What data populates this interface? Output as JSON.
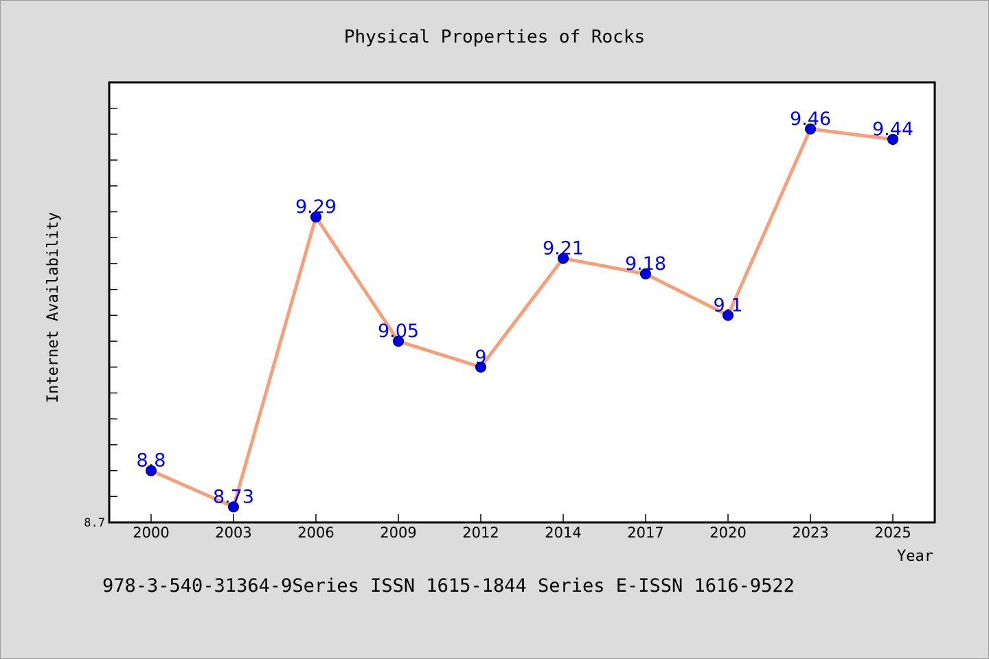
{
  "chart_data": {
    "type": "line",
    "title": "Physical Properties of Rocks",
    "xlabel": "Year",
    "ylabel": "Internet Availability",
    "categories": [
      "2000",
      "2003",
      "2006",
      "2009",
      "2012",
      "2014",
      "2017",
      "2020",
      "2023",
      "2025"
    ],
    "series": [
      {
        "values": [
          8.8,
          8.73,
          9.29,
          9.05,
          9.0,
          9.21,
          9.18,
          9.1,
          9.46,
          9.44
        ],
        "data_labels": [
          "8.8",
          "8.73",
          "9.29",
          "9.05",
          "9",
          "9.21",
          "9.18",
          "9.1",
          "9.46",
          "9.44"
        ]
      }
    ],
    "ylim": [
      8.7,
      9.55
    ],
    "y_tick_labels": [
      "8.7"
    ],
    "grid": false,
    "line_color": "#f4a07a",
    "marker_color": "#0000ee",
    "label_color": "#0000ee"
  },
  "footer": {
    "text": "978-3-540-31364-9Series ISSN 1615-1844 Series E-ISSN 1616-9522"
  }
}
